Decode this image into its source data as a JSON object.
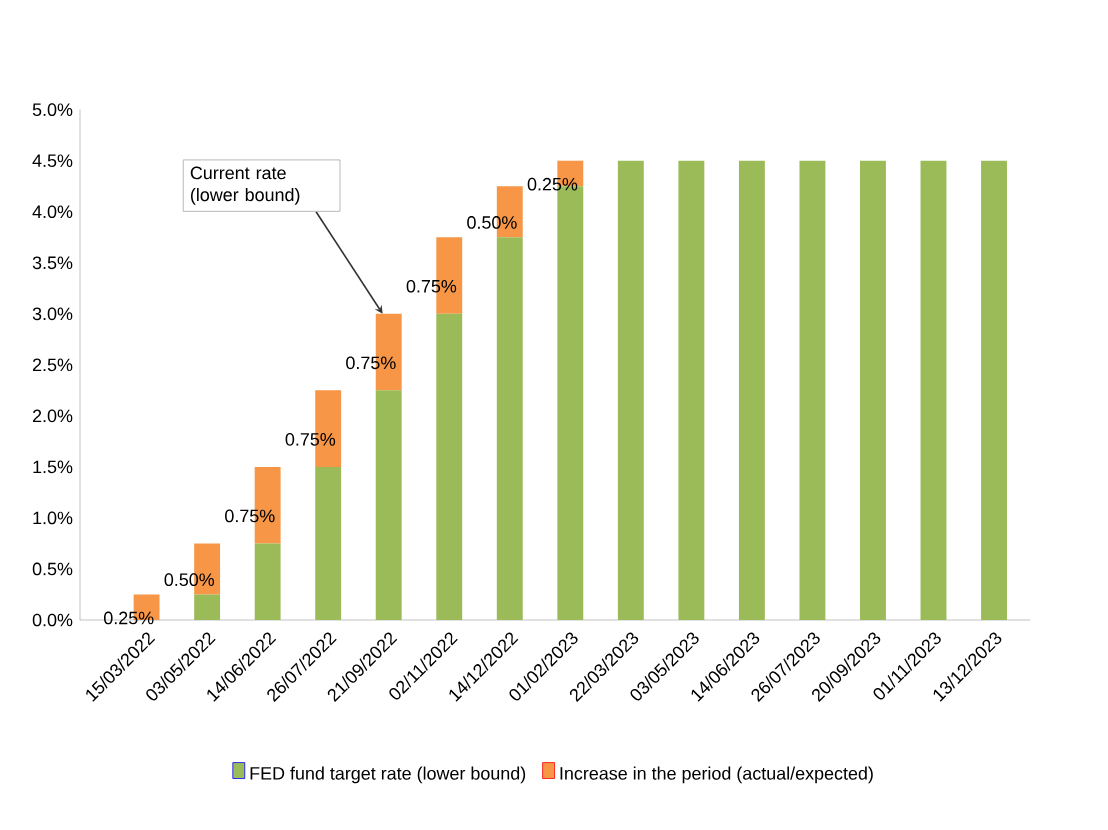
{
  "chart_data": {
    "type": "bar",
    "stacked": true,
    "categories": [
      "15/03/2022",
      "03/05/2022",
      "14/06/2022",
      "26/07/2022",
      "21/09/2022",
      "02/11/2022",
      "14/12/2022",
      "01/02/2023",
      "22/03/2023",
      "03/05/2023",
      "14/06/2023",
      "26/07/2023",
      "20/09/2023",
      "01/11/2023",
      "13/12/2023"
    ],
    "series": [
      {
        "name": "FED fund target rate (lower bound)",
        "color": "#9bbb59",
        "values": [
          0,
          0.25,
          0.75,
          1.5,
          2.25,
          3.0,
          3.75,
          4.25,
          4.5,
          4.5,
          4.5,
          4.5,
          4.5,
          4.5,
          4.5
        ]
      },
      {
        "name": "Increase in the period (actual/expected)",
        "color": "#f79646",
        "values": [
          0.25,
          0.5,
          0.75,
          0.75,
          0.75,
          0.75,
          0.5,
          0.25,
          null,
          null,
          null,
          null,
          null,
          null,
          null
        ],
        "value_labels": [
          "0.25%",
          "0.50%",
          "0.75%",
          "0.75%",
          "0.75%",
          "0.75%",
          "0.50%",
          "0.25%",
          null,
          null,
          null,
          null,
          null,
          null,
          null
        ]
      }
    ],
    "ylim": [
      0,
      5
    ],
    "yticks": [
      {
        "value": 0,
        "label": "0.0%"
      },
      {
        "value": 0.5,
        "label": "0.5%"
      },
      {
        "value": 1,
        "label": "1.0%"
      },
      {
        "value": 1.5,
        "label": "1.5%"
      },
      {
        "value": 2,
        "label": "2.0%"
      },
      {
        "value": 2.5,
        "label": "2.5%"
      },
      {
        "value": 3,
        "label": "3.0%"
      },
      {
        "value": 3.5,
        "label": "3.5%"
      },
      {
        "value": 4,
        "label": "4.0%"
      },
      {
        "value": 4.5,
        "label": "4.5%"
      },
      {
        "value": 5,
        "label": "5.0%"
      }
    ],
    "annotations": [
      {
        "text": "Current rate (lower bound)",
        "x": "21/09/2022",
        "y": 3.0
      }
    ],
    "legend": "bottom",
    "grid": false
  }
}
